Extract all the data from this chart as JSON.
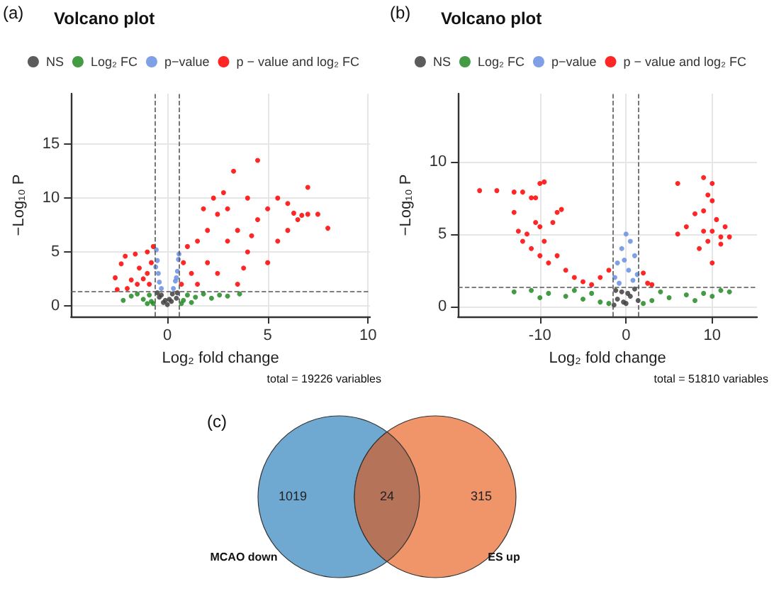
{
  "chart_data": [
    {
      "type": "scatter",
      "title": "Volcano plot",
      "xlabel": "Log₂ fold change",
      "ylabel": "−Log₁₀ P",
      "annotations": [
        "(a)",
        "total = 19226 variables"
      ],
      "xlim": [
        -4.8,
        10.1
      ],
      "ylim": [
        -1,
        19.7
      ],
      "xticks": [
        0,
        5,
        10
      ],
      "yticks": [
        0,
        5,
        10,
        15
      ],
      "grid": true,
      "legend": "top",
      "marker": "circle",
      "ref_lines": [
        {
          "axis": "x",
          "value": -0.6,
          "color": "#555555",
          "line_style": "dashed"
        },
        {
          "axis": "x",
          "value": 0.6,
          "color": "#555555",
          "line_style": "dashed"
        },
        {
          "axis": "y",
          "value": 1.3,
          "color": "#555555",
          "line_style": "dashed"
        }
      ],
      "series": [
        {
          "name": "NS",
          "color": "#404040",
          "x": [
            0,
            -0.2,
            0.2,
            -0.4,
            0.45,
            -0.5,
            0.5,
            0.1,
            -0.1,
            0.25,
            -0.3
          ],
          "values": [
            0.1,
            0.3,
            0.4,
            0.8,
            0.7,
            1.2,
            1.2,
            0.6,
            0.5,
            1.1,
            1.0
          ]
        },
        {
          "name": "Log₂ FC",
          "color": "#228b22",
          "x": [
            -2.2,
            -1.8,
            -1.5,
            -1.2,
            -0.9,
            -0.8,
            0.8,
            1,
            1.4,
            1.8,
            2.2,
            2.6,
            3,
            3.6,
            1.2,
            -1,
            0.7,
            -0.7
          ],
          "values": [
            0.5,
            0.9,
            1.1,
            0.6,
            1.0,
            0.4,
            0.5,
            1,
            0.8,
            1.1,
            0.7,
            1.0,
            0.9,
            1.1,
            0.3,
            0.2,
            0.2,
            0.2
          ]
        },
        {
          "name": "p−value",
          "color": "#6a8fe0",
          "x": [
            -0.55,
            -0.5,
            -0.45,
            -0.4,
            -0.3,
            0.3,
            0.4,
            0.5,
            0.55,
            0.58,
            -0.58,
            0.45
          ],
          "values": [
            5.2,
            4.2,
            3,
            2.2,
            1.6,
            1.6,
            2.3,
            3.2,
            4.3,
            4.8,
            3.6,
            2.6
          ]
        },
        {
          "name": "p − value and log₂ FC",
          "color": "#ff0000",
          "x": [
            -0.7,
            -0.8,
            -1,
            -1.2,
            -1.5,
            -2,
            -2.5,
            -1.6,
            -1,
            -0.9,
            -1.4,
            -2.1,
            -2.3,
            -2.6,
            -1.8,
            0.7,
            0.8,
            1,
            1.2,
            1.5,
            1.5,
            2,
            2,
            2.5,
            2.5,
            3,
            3,
            3.3,
            3.5,
            3.5,
            4,
            4,
            4.5,
            4.5,
            5,
            5,
            5.5,
            5.5,
            6,
            6,
            6.5,
            7,
            7,
            7.5,
            8,
            6.3,
            6.7,
            1.8,
            2.3,
            2.8,
            4.2,
            3.8
          ],
          "values": [
            5.5,
            4,
            3,
            2.5,
            2,
            1.6,
            1.5,
            4.8,
            5,
            2,
            3.5,
            4.6,
            3.9,
            2.6,
            2.4,
            2,
            4,
            5.5,
            3,
            6,
            2,
            7,
            4,
            8.5,
            3,
            9,
            6,
            12.5,
            7,
            2,
            10,
            5,
            13.5,
            8,
            9,
            4,
            10,
            6,
            9.5,
            7,
            8,
            11,
            8.5,
            8.5,
            7.2,
            8.6,
            8.4,
            9,
            10,
            10.5,
            6.5,
            3.5
          ]
        }
      ]
    },
    {
      "type": "scatter",
      "title": "Volcano plot",
      "xlabel": "Log₂ fold change",
      "ylabel": "−Log₁₀ P",
      "annotations": [
        "(b)",
        "total = 51810 variables"
      ],
      "xlim": [
        -19.5,
        15.2
      ],
      "ylim": [
        -0.7,
        14.7
      ],
      "xticks": [
        -10,
        0,
        10
      ],
      "yticks": [
        0,
        5,
        10
      ],
      "grid": true,
      "legend": "top",
      "marker": "circle",
      "ref_lines": [
        {
          "axis": "x",
          "value": -1.5,
          "color": "#555555",
          "line_style": "dashed"
        },
        {
          "axis": "x",
          "value": 1.5,
          "color": "#555555",
          "line_style": "dashed"
        },
        {
          "axis": "y",
          "value": 1.3,
          "color": "#555555",
          "line_style": "dashed"
        }
      ],
      "series": [
        {
          "name": "NS",
          "color": "#404040",
          "x": [
            -1.4,
            -1,
            -0.5,
            0,
            0.5,
            1,
            1.4,
            -1.2,
            0.2,
            -0.3
          ],
          "values": [
            0.1,
            0.5,
            1.0,
            0.2,
            0.7,
            1.2,
            0.4,
            1.1,
            0.9,
            0.3
          ]
        },
        {
          "name": "Log₂ FC",
          "color": "#228b22",
          "x": [
            -13,
            -11,
            -9,
            -7,
            -5,
            -3,
            -2,
            -10,
            -6,
            2,
            3,
            5,
            7,
            9,
            11,
            12,
            4,
            8,
            -4,
            10
          ],
          "values": [
            1.0,
            1.1,
            0.9,
            0.7,
            0.5,
            0.3,
            0.2,
            0.6,
            1.1,
            0.2,
            0.4,
            0.6,
            0.8,
            0.9,
            1.1,
            1.0,
            1.0,
            0.4,
            0.9,
            0.7
          ]
        },
        {
          "name": "p−value",
          "color": "#6a8fe0",
          "x": [
            -1.3,
            -1,
            -0.5,
            0,
            0.5,
            1,
            1.3,
            -0.2,
            0.3,
            0.8,
            -0.8
          ],
          "values": [
            2,
            3,
            4,
            5,
            4.5,
            3.5,
            2.2,
            3.2,
            2.5,
            1.8,
            1.6
          ]
        },
        {
          "name": "p − value and log₂ FC",
          "color": "#ff0000",
          "x": [
            -13,
            -12.5,
            -12,
            -11.5,
            -11,
            -10.5,
            -10,
            -10,
            -9.5,
            -9,
            -8.5,
            -8,
            -7.5,
            -8,
            -7,
            -6,
            -5,
            -4,
            -3,
            -2,
            -10.5,
            -11,
            -12,
            -13,
            -15,
            -17,
            -10,
            -9.5,
            2,
            2.5,
            3,
            6,
            7,
            8,
            8.5,
            9,
            9.5,
            10,
            10,
            10.5,
            11,
            11.5,
            12,
            6,
            9,
            10,
            9.5,
            10,
            9,
            11
          ],
          "values": [
            6.5,
            5.2,
            4.5,
            5,
            4,
            5.8,
            5.5,
            3.5,
            4.5,
            3,
            5.8,
            6.5,
            6.7,
            3.5,
            2.5,
            2,
            1.7,
            1.5,
            2,
            2.5,
            7.5,
            7.5,
            7.9,
            7.9,
            8.0,
            8.0,
            8.5,
            8.6,
            2.3,
            1.6,
            1.5,
            5,
            5.5,
            6.4,
            4,
            5.2,
            4.5,
            5.2,
            3,
            6,
            4.8,
            5.5,
            4.8,
            8.5,
            8.9,
            8.5,
            7.7,
            7.3,
            6.6,
            4.3
          ]
        }
      ]
    },
    {
      "type": "other",
      "annotations": [
        "(c)"
      ],
      "categories": [
        "MCAO down",
        null,
        "ES up"
      ],
      "values": [
        1019,
        24,
        315
      ],
      "data_labels": true,
      "colors": [
        "#6fa8d0",
        "#b5735a",
        "#f0956a"
      ]
    }
  ]
}
